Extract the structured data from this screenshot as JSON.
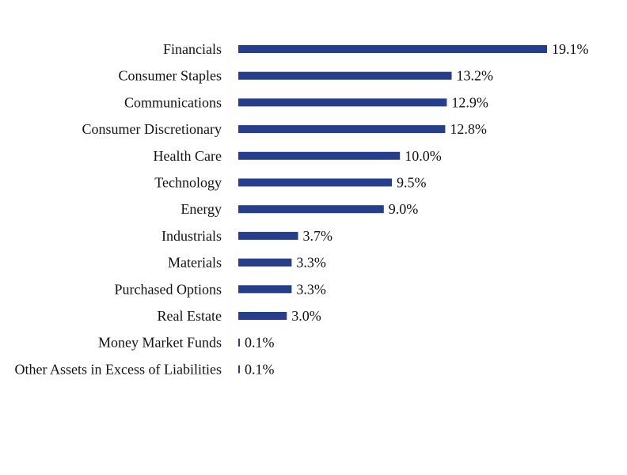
{
  "chart_data": {
    "type": "bar",
    "orientation": "horizontal",
    "categories": [
      "Financials",
      "Consumer Staples",
      "Communications",
      "Consumer Discretionary",
      "Health Care",
      "Technology",
      "Energy",
      "Industrials",
      "Materials",
      "Purchased Options",
      "Real Estate",
      "Money Market Funds",
      "Other Assets in Excess of Liabilities"
    ],
    "values": [
      19.1,
      13.2,
      12.9,
      12.8,
      10.0,
      9.5,
      9.0,
      3.7,
      3.3,
      3.3,
      3.0,
      0.1,
      0.1
    ],
    "value_labels": [
      "19.1%",
      "13.2%",
      "12.9%",
      "12.8%",
      "10.0%",
      "9.5%",
      "9.0%",
      "3.7%",
      "3.3%",
      "3.3%",
      "3.0%",
      "0.1%",
      "0.1%"
    ],
    "title": "",
    "xlabel": "",
    "ylabel": "",
    "grid": false,
    "legend": "none",
    "colors": {
      "bar": "#253f8e"
    }
  }
}
